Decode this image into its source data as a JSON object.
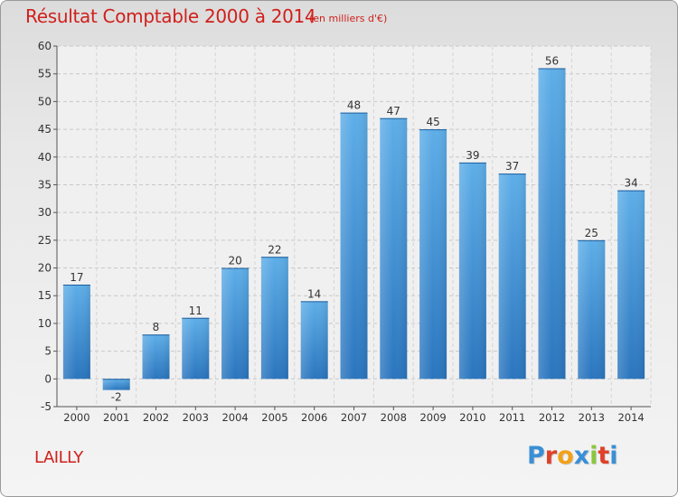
{
  "header": {
    "title": "Résultat Comptable 2000 à 2014",
    "subtitle": "(en milliers d'€)"
  },
  "footer": {
    "place": "LAILLY",
    "logo_text": "Proxiti",
    "logo_colors": [
      "#3a8fd6",
      "#e0402a",
      "#f2a11a",
      "#3a8fd6",
      "#8cc63e",
      "#e0402a",
      "#3a8fd6"
    ]
  },
  "chart_data": {
    "type": "bar",
    "categories": [
      "2000",
      "2001",
      "2002",
      "2003",
      "2004",
      "2005",
      "2006",
      "2007",
      "2008",
      "2009",
      "2010",
      "2011",
      "2012",
      "2013",
      "2014"
    ],
    "values": [
      17,
      -2,
      8,
      11,
      20,
      22,
      14,
      48,
      47,
      45,
      39,
      37,
      56,
      25,
      34
    ],
    "value_labels": [
      "17",
      "-2",
      "8",
      "11",
      "20",
      "22",
      "14",
      "48",
      "47",
      "45",
      "39",
      "37",
      "56",
      "25",
      "34"
    ],
    "yticks": [
      "-5",
      "0",
      "5",
      "10",
      "15",
      "20",
      "25",
      "30",
      "35",
      "40",
      "45",
      "50",
      "55",
      "60"
    ],
    "ylim": [
      -5,
      60
    ],
    "grid": true,
    "bar_color": "#3b8fd9",
    "bar_color_dark": "#2a75be"
  }
}
